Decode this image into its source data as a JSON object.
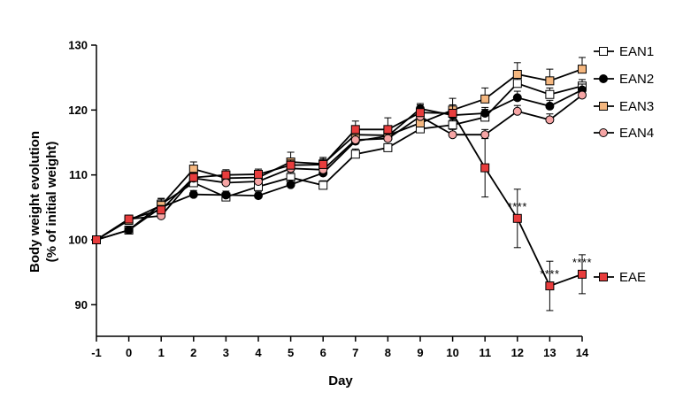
{
  "chart_data": {
    "type": "line",
    "title": "",
    "xlabel": "Day",
    "ylabel_line1": "Body weight evolution",
    "ylabel_line2": "(% of initial weight)",
    "x": [
      -1,
      0,
      1,
      2,
      3,
      4,
      5,
      6,
      7,
      8,
      9,
      10,
      11,
      12,
      13,
      14
    ],
    "x_tick_labels": [
      "-1",
      "0",
      "1",
      "2",
      "3",
      "4",
      "5",
      "6",
      "7",
      "8",
      "9",
      "10",
      "11",
      "12",
      "13",
      "14"
    ],
    "xlim": [
      -1,
      14
    ],
    "ylim": [
      85,
      130
    ],
    "y_ticks": [
      90,
      100,
      110,
      120,
      130
    ],
    "y_tick_labels": [
      "90",
      "100",
      "110",
      "120",
      "130"
    ],
    "grid": false,
    "legend_position": "right",
    "series": [
      {
        "name": "EAN1",
        "marker": "square",
        "fill": "#ffffff",
        "values": [
          100,
          101.5,
          105.5,
          108.8,
          106.6,
          108.2,
          109.6,
          108.4,
          113.2,
          114.2,
          117.1,
          117.7,
          118.9,
          124.1,
          122.4,
          123.7
        ],
        "errors": [
          0,
          0.4,
          0.8,
          0.9,
          0.7,
          0.7,
          0.8,
          0.7,
          0.8,
          0.6,
          0.7,
          0.8,
          1.2,
          1.1,
          1.0,
          1.0
        ]
      },
      {
        "name": "EAN2",
        "marker": "circle",
        "fill": "#000000",
        "values": [
          100,
          101.5,
          105.0,
          107.0,
          106.9,
          106.8,
          108.5,
          110.3,
          115.2,
          116.0,
          120.2,
          119.2,
          119.5,
          121.9,
          120.6,
          123.1
        ],
        "errors": [
          0,
          0.3,
          0.6,
          0.6,
          0.6,
          0.6,
          0.7,
          0.7,
          0.8,
          0.7,
          0.8,
          0.8,
          0.9,
          1.0,
          0.9,
          0.9
        ]
      },
      {
        "name": "EAN3",
        "marker": "square",
        "fill": "#f5b77f",
        "values": [
          100,
          103.0,
          105.3,
          110.9,
          109.5,
          109.6,
          112.0,
          111.7,
          116.2,
          116.1,
          118.0,
          120.0,
          121.7,
          125.5,
          124.5,
          126.3
        ],
        "errors": [
          0,
          0.4,
          1.1,
          1.1,
          0.8,
          0.8,
          1.5,
          0.8,
          1.0,
          1.1,
          0.9,
          1.8,
          1.7,
          1.8,
          1.8,
          1.8
        ]
      },
      {
        "name": "EAN4",
        "marker": "circle",
        "fill": "#f6a5a5",
        "values": [
          100,
          103.2,
          103.7,
          109.5,
          108.8,
          109.0,
          111.0,
          110.8,
          115.4,
          115.6,
          119.0,
          116.2,
          116.2,
          119.8,
          118.5,
          122.3
        ],
        "errors": [
          0,
          0.4,
          0.6,
          0.7,
          0.7,
          0.7,
          0.7,
          0.7,
          0.8,
          0.7,
          0.8,
          0.8,
          0.8,
          0.9,
          0.9,
          0.9
        ]
      },
      {
        "name": "EAE",
        "marker": "square",
        "fill": "#e83d3d",
        "values": [
          100,
          103.2,
          104.6,
          109.6,
          110.0,
          110.1,
          111.5,
          111.6,
          117.0,
          117.0,
          119.6,
          119.5,
          111.1,
          103.3,
          92.9,
          94.7
        ],
        "errors": [
          0,
          0.4,
          0.7,
          0.8,
          0.8,
          0.8,
          0.8,
          1.1,
          1.3,
          1.8,
          1.2,
          1.3,
          4.5,
          4.5,
          3.8,
          3.0
        ]
      }
    ],
    "annotations": [
      {
        "text": "****",
        "x": 12,
        "y": 103.3
      },
      {
        "text": "****",
        "x": 13,
        "y": 92.9
      },
      {
        "text": "****",
        "x": 14,
        "y": 94.7
      }
    ]
  }
}
